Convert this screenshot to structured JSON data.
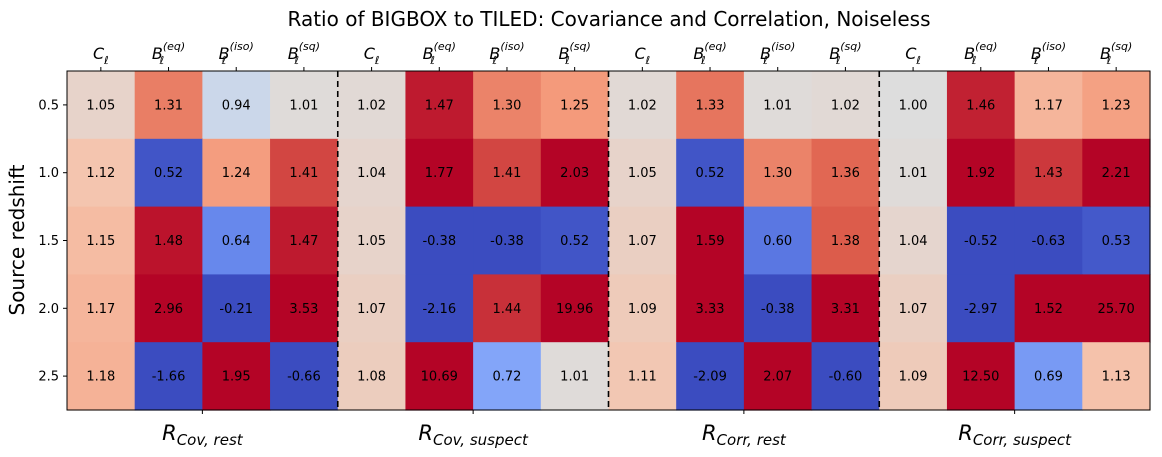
{
  "chart_data": {
    "type": "heatmap",
    "title": "Ratio of BIGBOX to TILED: Covariance and Correlation, Noiseless",
    "ylabel": "Source redshift",
    "rows": [
      "0.5",
      "1.0",
      "1.5",
      "2.0",
      "2.5"
    ],
    "column_labels": [
      {
        "base": "C",
        "sub": "ℓ",
        "sup": ""
      },
      {
        "base": "B",
        "sub": "ℓ",
        "sup": "(eq)"
      },
      {
        "base": "B",
        "sub": "ℓ",
        "sup": "(iso)"
      },
      {
        "base": "B",
        "sub": "ℓ",
        "sup": "(sq)"
      },
      {
        "base": "C",
        "sub": "ℓ",
        "sup": ""
      },
      {
        "base": "B",
        "sub": "ℓ",
        "sup": "(eq)"
      },
      {
        "base": "B",
        "sub": "ℓ",
        "sup": "(iso)"
      },
      {
        "base": "B",
        "sub": "ℓ",
        "sup": "(sq)"
      },
      {
        "base": "C",
        "sub": "ℓ",
        "sup": ""
      },
      {
        "base": "B",
        "sub": "ℓ",
        "sup": "(eq)"
      },
      {
        "base": "B",
        "sub": "ℓ",
        "sup": "(iso)"
      },
      {
        "base": "B",
        "sub": "ℓ",
        "sup": "(sq)"
      },
      {
        "base": "C",
        "sub": "ℓ",
        "sup": ""
      },
      {
        "base": "B",
        "sub": "ℓ",
        "sup": "(eq)"
      },
      {
        "base": "B",
        "sub": "ℓ",
        "sup": "(iso)"
      },
      {
        "base": "B",
        "sub": "ℓ",
        "sup": "(sq)"
      }
    ],
    "groups": [
      {
        "base": "R",
        "sub": "Cov, rest"
      },
      {
        "base": "R",
        "sub": "Cov, suspect"
      },
      {
        "base": "R",
        "sub": "Corr, rest"
      },
      {
        "base": "R",
        "sub": "Corr, suspect"
      }
    ],
    "values": [
      [
        1.05,
        1.31,
        0.94,
        1.01,
        1.02,
        1.47,
        1.3,
        1.25,
        1.02,
        1.33,
        1.01,
        1.02,
        1.0,
        1.46,
        1.17,
        1.23
      ],
      [
        1.12,
        0.52,
        1.24,
        1.41,
        1.04,
        1.77,
        1.41,
        2.03,
        1.05,
        0.52,
        1.3,
        1.36,
        1.01,
        1.92,
        1.43,
        2.21
      ],
      [
        1.15,
        1.48,
        0.64,
        1.47,
        1.05,
        -0.38,
        -0.38,
        0.52,
        1.07,
        1.59,
        0.6,
        1.38,
        1.04,
        -0.52,
        -0.63,
        0.53
      ],
      [
        1.17,
        2.96,
        -0.21,
        3.53,
        1.07,
        -2.16,
        1.44,
        19.96,
        1.09,
        3.33,
        -0.38,
        3.31,
        1.07,
        -2.97,
        1.52,
        25.7
      ],
      [
        1.18,
        -1.66,
        1.95,
        -0.66,
        1.08,
        10.69,
        0.72,
        1.01,
        1.11,
        -2.09,
        2.07,
        -0.6,
        1.09,
        12.5,
        0.69,
        1.13
      ]
    ],
    "labels": [
      [
        "1.05",
        "1.31",
        "0.94",
        "1.01",
        "1.02",
        "1.47",
        "1.30",
        "1.25",
        "1.02",
        "1.33",
        "1.01",
        "1.02",
        "1.00",
        "1.46",
        "1.17",
        "1.23"
      ],
      [
        "1.12",
        "0.52",
        "1.24",
        "1.41",
        "1.04",
        "1.77",
        "1.41",
        "2.03",
        "1.05",
        "0.52",
        "1.30",
        "1.36",
        "1.01",
        "1.92",
        "1.43",
        "2.21"
      ],
      [
        "1.15",
        "1.48",
        "0.64",
        "1.47",
        "1.05",
        "-0.38",
        "-0.38",
        "0.52",
        "1.07",
        "1.59",
        "0.60",
        "1.38",
        "1.04",
        "-0.52",
        "-0.63",
        "0.53"
      ],
      [
        "1.17",
        "2.96",
        "-0.21",
        "3.53",
        "1.07",
        "-2.16",
        "1.44",
        "19.96",
        "1.09",
        "3.33",
        "-0.38",
        "3.31",
        "1.07",
        "-2.97",
        "1.52",
        "25.70"
      ],
      [
        "1.18",
        "-1.66",
        "1.95",
        "-0.66",
        "1.08",
        "10.69",
        "0.72",
        "1.01",
        "1.11",
        "-2.09",
        "2.07",
        "-0.60",
        "1.09",
        "12.50",
        "0.69",
        "1.13"
      ]
    ],
    "colormap": "coolwarm",
    "color_range": [
      0.5,
      1.5
    ],
    "group_separators": "dashed",
    "grid": false,
    "legend": "none"
  }
}
